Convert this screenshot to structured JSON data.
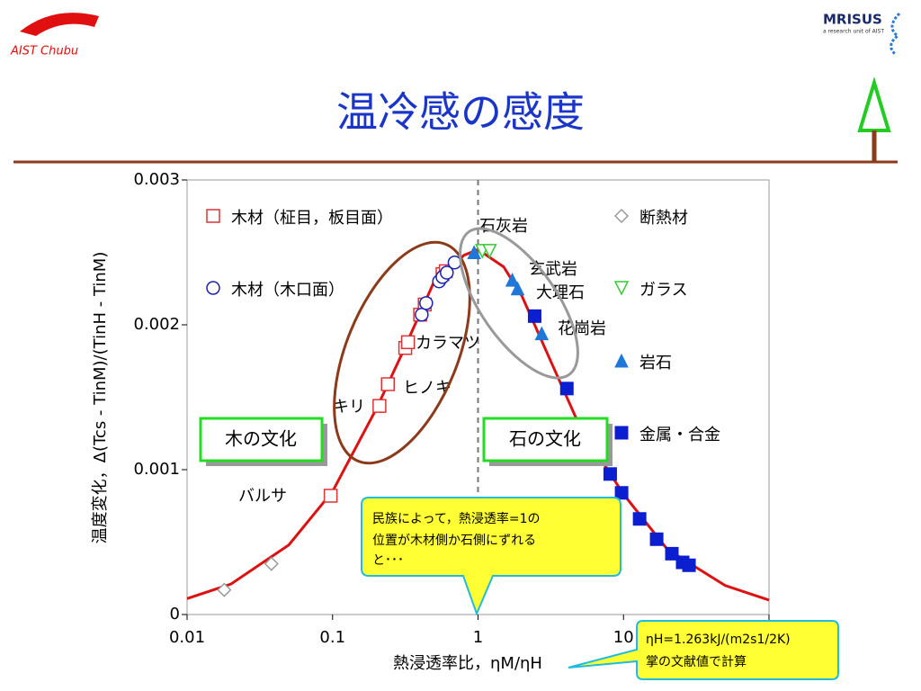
{
  "header": {
    "logo_left": "AIST Chubu",
    "logo_right": "MRISUS",
    "logo_right_sub": "a research unit of AIST",
    "title": "温冷感の感度"
  },
  "chart_data": {
    "type": "scatter",
    "xlabel": "熱浸透率比，ηM/ηH",
    "ylabel": "温度変化，Δ(Tcs - TinM)/(TinH - TinM)",
    "xlog": true,
    "xlim": [
      0.01,
      100
    ],
    "xticks": [
      0.01,
      0.1,
      1,
      10,
      100
    ],
    "ylim": [
      0,
      0.003
    ],
    "yticks": [
      0,
      0.001,
      0.002,
      0.003
    ],
    "vline": 1,
    "curve": {
      "color": "#dd1111",
      "x": [
        0.01,
        0.02,
        0.05,
        0.1,
        0.2,
        0.3,
        0.5,
        0.8,
        1,
        1.5,
        2,
        3,
        5,
        10,
        20,
        50,
        100
      ],
      "values": [
        0.00011,
        0.00021,
        0.00048,
        0.00085,
        0.00142,
        0.0018,
        0.0023,
        0.00248,
        0.00252,
        0.0024,
        0.0022,
        0.0018,
        0.0013,
        0.00083,
        0.00045,
        0.0002,
        0.0001
      ]
    },
    "series": [
      {
        "name": "木材（柾目，板目面）",
        "marker": "square-open",
        "color": "#dd3333",
        "x": [
          0.097,
          0.21,
          0.24,
          0.316,
          0.33,
          0.4,
          0.43,
          0.57,
          0.6
        ],
        "values": [
          0.00082,
          0.00144,
          0.00159,
          0.00184,
          0.00188,
          0.00207,
          0.00214,
          0.00235,
          0.00237
        ]
      },
      {
        "name": "木材（木口面）",
        "marker": "circle-open",
        "color": "#1a22b0",
        "x": [
          0.41,
          0.44,
          0.54,
          0.57,
          0.61,
          0.69
        ],
        "values": [
          0.00207,
          0.00215,
          0.0023,
          0.00233,
          0.00236,
          0.00243
        ]
      },
      {
        "name": "断熱材",
        "marker": "diamond-open",
        "color": "#999999",
        "x": [
          0.018,
          0.038
        ],
        "values": [
          0.00017,
          0.00035
        ]
      },
      {
        "name": "ガラス",
        "marker": "triangle-down-open",
        "color": "#33cc33",
        "x": [
          1.07,
          1.2
        ],
        "values": [
          0.00251,
          0.00251
        ]
      },
      {
        "name": "岩石",
        "marker": "triangle-up",
        "color": "#1f78d8",
        "x": [
          0.94,
          1.72,
          1.87,
          2.74
        ],
        "values": [
          0.0025,
          0.00231,
          0.00225,
          0.00194
        ]
      },
      {
        "name": "金属・合金",
        "marker": "square",
        "color": "#0b1fd0",
        "x": [
          2.45,
          4.08,
          8.1,
          9.7,
          12.9,
          16.9,
          21.5,
          25.5,
          28.2
        ],
        "values": [
          0.00206,
          0.00156,
          0.00097,
          0.00084,
          0.00066,
          0.00052,
          0.00042,
          0.00036,
          0.00034
        ]
      }
    ],
    "annotations": [
      "石灰岩",
      "玄武岩",
      "大理石",
      "花崗岩",
      "カラマツ",
      "ヒノキ",
      "キリ",
      "バルサ"
    ],
    "culture_boxes": [
      "木の文化",
      "石の文化"
    ],
    "callout": [
      "民族によって，熱浸透率=1の",
      "位置が木材側か石側にずれる",
      "と･･･"
    ],
    "note": [
      "ηH=1.263kJ/(m2s1/2K)",
      "掌の文献値で計算"
    ]
  }
}
